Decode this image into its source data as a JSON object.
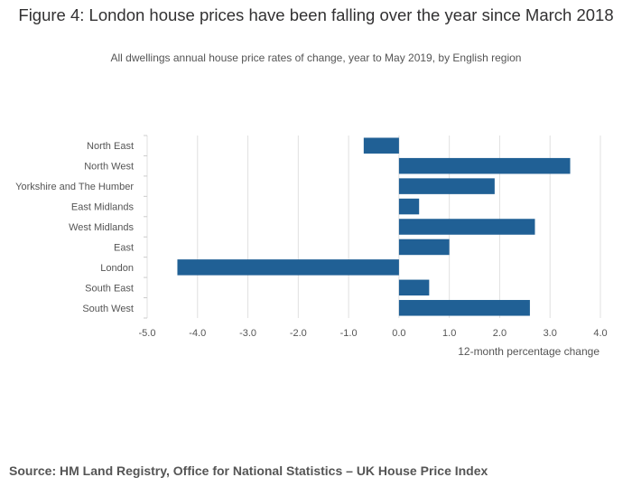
{
  "title": "Figure 4: London house prices have been falling over the year since March 2018",
  "subtitle": "All dwellings annual house price rates of change, year to May 2019, by English region",
  "source": "Source: HM Land Registry, Office for National Statistics – UK House Price Index",
  "chart_data": {
    "type": "bar",
    "orientation": "horizontal",
    "categories": [
      "North East",
      "North West",
      "Yorkshire and The Humber",
      "East Midlands",
      "West Midlands",
      "East",
      "London",
      "South East",
      "South West"
    ],
    "values": [
      -0.7,
      3.4,
      1.9,
      0.4,
      2.7,
      1.0,
      -4.4,
      0.6,
      2.6
    ],
    "xlabel": "12-month percentage change",
    "ylabel": "",
    "xlim": [
      -5.0,
      4.0
    ],
    "xticks": [
      "-5.0",
      "-4.0",
      "-3.0",
      "-2.0",
      "-1.0",
      "0.0",
      "1.0",
      "2.0",
      "3.0",
      "4.0"
    ],
    "bar_color": "#206095",
    "grid": true
  }
}
